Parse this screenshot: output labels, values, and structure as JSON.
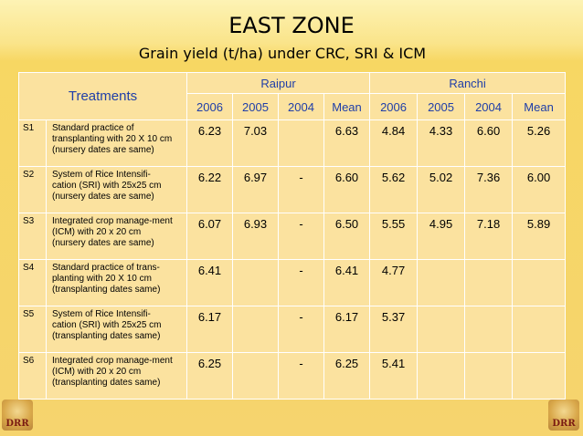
{
  "title": "EAST ZONE",
  "subtitle": "Grain yield (t/ha) under CRC, SRI & ICM",
  "table": {
    "treatments_header": "Treatments",
    "sites": [
      "Raipur",
      "Ranchi"
    ],
    "year_headers": [
      "2006",
      "2005",
      "2004",
      "Mean",
      "2006",
      "2005",
      "2004",
      "Mean"
    ],
    "rows": [
      {
        "code": "S1",
        "desc": [
          "Standard practice of",
          "transplanting with 20 X 10 cm",
          "(nursery dates are same)"
        ],
        "values": [
          "6.23",
          "7.03",
          "",
          "6.63",
          "4.84",
          "4.33",
          "6.60",
          "5.26"
        ]
      },
      {
        "code": "S2",
        "desc": [
          "System of Rice Intensifi-",
          "cation (SRI) with 25x25 cm",
          "(nursery dates are same)"
        ],
        "values": [
          "6.22",
          "6.97",
          "-",
          "6.60",
          "5.62",
          "5.02",
          "7.36",
          "6.00"
        ]
      },
      {
        "code": "S3",
        "desc": [
          "Integrated crop manage-ment",
          "(ICM) with 20 x 20 cm",
          "(nursery dates are same)"
        ],
        "values": [
          "6.07",
          "6.93",
          "-",
          "6.50",
          "5.55",
          "4.95",
          "7.18",
          "5.89"
        ]
      },
      {
        "code": "S4",
        "desc": [
          "Standard practice of trans-",
          "planting with 20 X 10 cm",
          "(transplanting dates same)"
        ],
        "values": [
          "6.41",
          "",
          "-",
          "6.41",
          "4.77",
          "",
          "",
          ""
        ]
      },
      {
        "code": "S5",
        "desc": [
          "System of Rice Intensifi-",
          "cation (SRI) with 25x25 cm",
          "(transplanting dates same)"
        ],
        "values": [
          "6.17",
          "",
          "-",
          "6.17",
          "5.37",
          "",
          "",
          ""
        ]
      },
      {
        "code": "S6",
        "desc": [
          "Integrated crop manage-ment",
          "(ICM) with 20 x 20 cm",
          "(transplanting dates same)"
        ],
        "values": [
          "6.25",
          "",
          "-",
          "6.25",
          "5.41",
          "",
          "",
          ""
        ]
      }
    ]
  },
  "logos": {
    "left": "DRR",
    "right": "DRR"
  }
}
